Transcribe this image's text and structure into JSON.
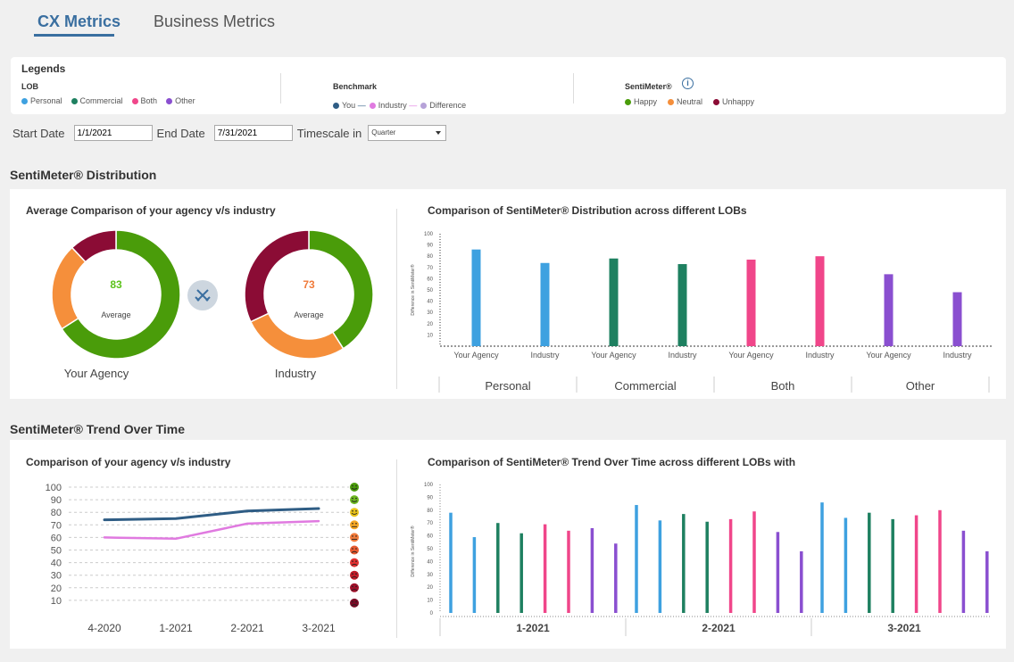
{
  "tabs": [
    {
      "label": "CX Metrics",
      "active": true
    },
    {
      "label": "Business Metrics",
      "active": false
    }
  ],
  "legends": {
    "title": "Legends",
    "lob": {
      "title": "LOB",
      "items": [
        {
          "label": "Personal",
          "color": "#3ea1e0"
        },
        {
          "label": "Commercial",
          "color": "#1e8060"
        },
        {
          "label": "Both",
          "color": "#f0468a"
        },
        {
          "label": "Other",
          "color": "#8a4fd0"
        }
      ]
    },
    "benchmark": {
      "title": "Benchmark",
      "items": [
        {
          "label": "You",
          "color": "#2f5d85"
        },
        {
          "label": "Industry",
          "color": "#e07ae0"
        },
        {
          "label": "Difference",
          "color": "#b6a2d8"
        }
      ]
    },
    "sentimeter": {
      "title": "SentiMeter®",
      "info_icon": "info-icon",
      "items": [
        {
          "label": "Happy",
          "color": "#4a9c0a"
        },
        {
          "label": "Neutral",
          "color": "#f58f3b"
        },
        {
          "label": "Unhappy",
          "color": "#8b0c35"
        }
      ]
    }
  },
  "filters": {
    "start_label": "Start Date",
    "start_value": "1/1/2021",
    "end_label": "End Date",
    "end_value": "7/31/2021",
    "timescale_label": "Timescale in",
    "timescale_value": "Quarter"
  },
  "distribution": {
    "section_title": "SentiMeter® Distribution",
    "avg_title": "Average Comparison of your agency v/s industry",
    "lob_title": "Comparison of SentiMeter® Distribution across different LOBs",
    "versus_icon": "crossed-swords-icon",
    "donuts": [
      {
        "label": "Your Agency",
        "value": "83",
        "sublabel": "Average",
        "value_color": "#5bc21a",
        "segments": [
          {
            "name": "Happy",
            "value": 66,
            "color": "#4a9c0a"
          },
          {
            "name": "Neutral",
            "value": 22,
            "color": "#f58f3b"
          },
          {
            "name": "Unhappy",
            "value": 12,
            "color": "#8b0c35"
          }
        ]
      },
      {
        "label": "Industry",
        "value": "73",
        "sublabel": "Average",
        "value_color": "#f07a3a",
        "segments": [
          {
            "name": "Happy",
            "value": 41,
            "color": "#4a9c0a"
          },
          {
            "name": "Neutral",
            "value": 27,
            "color": "#f58f3b"
          },
          {
            "name": "Unhappy",
            "value": 32,
            "color": "#8b0c35"
          }
        ]
      }
    ]
  },
  "trend": {
    "section_title": "SentiMeter® Trend Over Time",
    "line_title": "Comparison of your agency v/s industry",
    "bar_title": "Comparison of SentiMeter® Trend Over Time across different LOBs with"
  },
  "chart_data": [
    {
      "type": "bar",
      "title": "Comparison of SentiMeter® Distribution across different LOBs",
      "ylabel": "Difference in SentiMeter®",
      "ylim": [
        0,
        100
      ],
      "yticks": [
        "100",
        "90",
        "80",
        "70",
        "60",
        "50",
        "40",
        "30",
        "20",
        "10"
      ],
      "groups": [
        "Personal",
        "Commercial",
        "Both",
        "Other"
      ],
      "bars": [
        {
          "label": "Your Agency",
          "group": "Personal",
          "value": 86,
          "color": "#3ea1e0"
        },
        {
          "label": "Industry",
          "group": "Personal",
          "value": 74,
          "color": "#3ea1e0"
        },
        {
          "label": "Your Agency",
          "group": "Commercial",
          "value": 78,
          "color": "#1e8060"
        },
        {
          "label": "Industry",
          "group": "Commercial",
          "value": 73,
          "color": "#1e8060"
        },
        {
          "label": "Your Agency",
          "group": "Both",
          "value": 77,
          "color": "#f0468a"
        },
        {
          "label": "Industry",
          "group": "Both",
          "value": 80,
          "color": "#f0468a"
        },
        {
          "label": "Your Agency",
          "group": "Other",
          "value": 64,
          "color": "#8a4fd0"
        },
        {
          "label": "Industry",
          "group": "Other",
          "value": 48,
          "color": "#8a4fd0"
        }
      ]
    },
    {
      "type": "line",
      "title": "Comparison of your agency v/s industry",
      "categories": [
        "4-2020",
        "1-2021",
        "2-2021",
        "3-2021"
      ],
      "yticks": [
        "100",
        "90",
        "80",
        "70",
        "60",
        "50",
        "40",
        "30",
        "20",
        "10"
      ],
      "ylim": [
        0,
        100
      ],
      "series": [
        {
          "name": "You",
          "color": "#2f5d85",
          "values": [
            74,
            75,
            81,
            83
          ]
        },
        {
          "name": "Industry",
          "color": "#e07ae0",
          "values": [
            60,
            59,
            71,
            73
          ]
        }
      ],
      "face_colors": [
        "#4a9c0a",
        "#6db820",
        "#e8c21a",
        "#f5a623",
        "#f07a3a",
        "#e85a30",
        "#e03030",
        "#c01c28",
        "#a0102a",
        "#7a0a26"
      ]
    },
    {
      "type": "bar",
      "title": "Comparison of SentiMeter® Trend Over Time across different LOBs with",
      "ylabel": "Difference in SentiMeter®",
      "ylim": [
        0,
        100
      ],
      "yticks": [
        "100",
        "90",
        "80",
        "70",
        "60",
        "50",
        "40",
        "30",
        "20",
        "10",
        "0"
      ],
      "groups": [
        "1-2021",
        "2-2021",
        "3-2021"
      ],
      "bar_groups": [
        [
          {
            "value": 78,
            "color": "#3ea1e0"
          },
          {
            "value": 59,
            "color": "#3ea1e0"
          },
          {
            "value": 70,
            "color": "#1e8060"
          },
          {
            "value": 62,
            "color": "#1e8060"
          },
          {
            "value": 69,
            "color": "#f0468a"
          },
          {
            "value": 64,
            "color": "#f0468a"
          },
          {
            "value": 66,
            "color": "#8a4fd0"
          },
          {
            "value": 54,
            "color": "#8a4fd0"
          }
        ],
        [
          {
            "value": 84,
            "color": "#3ea1e0"
          },
          {
            "value": 72,
            "color": "#3ea1e0"
          },
          {
            "value": 77,
            "color": "#1e8060"
          },
          {
            "value": 71,
            "color": "#1e8060"
          },
          {
            "value": 73,
            "color": "#f0468a"
          },
          {
            "value": 79,
            "color": "#f0468a"
          },
          {
            "value": 63,
            "color": "#8a4fd0"
          },
          {
            "value": 48,
            "color": "#8a4fd0"
          }
        ],
        [
          {
            "value": 86,
            "color": "#3ea1e0"
          },
          {
            "value": 74,
            "color": "#3ea1e0"
          },
          {
            "value": 78,
            "color": "#1e8060"
          },
          {
            "value": 73,
            "color": "#1e8060"
          },
          {
            "value": 76,
            "color": "#f0468a"
          },
          {
            "value": 80,
            "color": "#f0468a"
          },
          {
            "value": 64,
            "color": "#8a4fd0"
          },
          {
            "value": 48,
            "color": "#8a4fd0"
          }
        ]
      ]
    }
  ]
}
